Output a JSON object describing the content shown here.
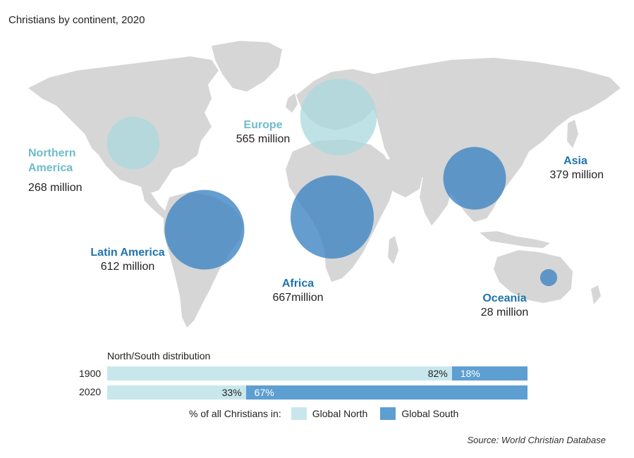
{
  "title": "Christians by continent, 2020",
  "colors": {
    "land": "#d6d6d6",
    "global_north": "#c8e7ec",
    "global_south": "#5e9fd1",
    "north_label": "#6dbccb",
    "south_label": "#1f73ad"
  },
  "regions": [
    {
      "key": "northern_america",
      "name": "Northern America",
      "value": "268 million",
      "group": "north",
      "millions": 268
    },
    {
      "key": "europe",
      "name": "Europe",
      "value": "565 million",
      "group": "north",
      "millions": 565
    },
    {
      "key": "asia",
      "name": "Asia",
      "value": "379 million",
      "group": "south",
      "millions": 379
    },
    {
      "key": "latin_america",
      "name": "Latin America",
      "value": "612 million",
      "group": "south",
      "millions": 612
    },
    {
      "key": "africa",
      "name": "Africa",
      "value": "667million",
      "group": "south",
      "millions": 667
    },
    {
      "key": "oceania",
      "name": "Oceania",
      "value": "28 million",
      "group": "south",
      "millions": 28
    }
  ],
  "distribution": {
    "title": "North/South distribution",
    "rows": [
      {
        "year": "1900",
        "north": 82,
        "south": 18,
        "north_label": "82%",
        "south_label": "18%"
      },
      {
        "year": "2020",
        "north": 33,
        "south": 67,
        "north_label": "33%",
        "south_label": "67%"
      }
    ],
    "legend_prefix": "% of all Christians in:",
    "legend_north": "Global North",
    "legend_south": "Global South"
  },
  "source": "Source: World Christian Database"
}
